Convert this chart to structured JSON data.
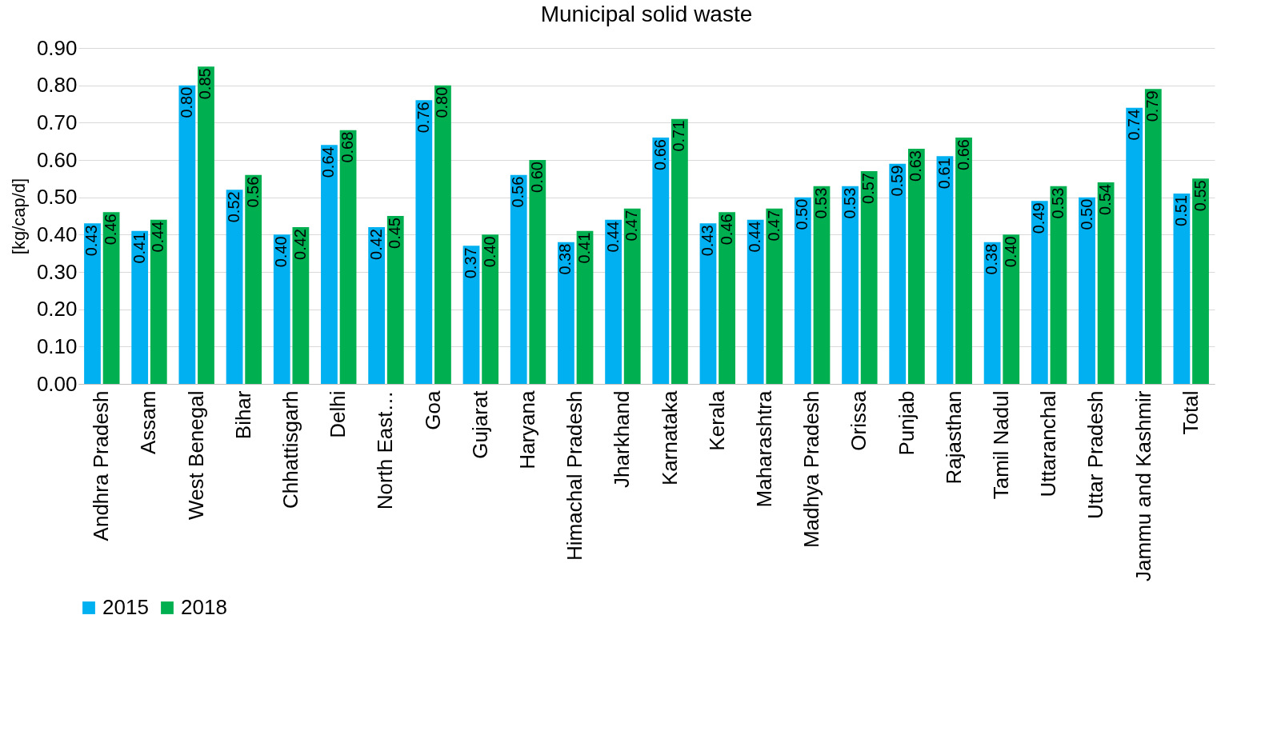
{
  "chart_data": {
    "type": "bar",
    "title": "Municipal solid waste",
    "ylabel": "[kg/cap/d]",
    "categories": [
      "Andhra Pradesh",
      "Assam",
      "West Benegal",
      "Bihar",
      "Chhattisgarh",
      "Delhi",
      "North East…",
      "Goa",
      "Gujarat",
      "Haryana",
      "Himachal Pradesh",
      "Jharkhand",
      "Karnataka",
      "Kerala",
      "Maharashtra",
      "Madhya Pradesh",
      "Orissa",
      "Punjab",
      "Rajasthan",
      "Tamil Nadul",
      "Uttaranchal",
      "Uttar Pradesh",
      "Jammu and Kashmir",
      "Total"
    ],
    "series": [
      {
        "name": "2015",
        "color": "#00b0f0",
        "values": [
          0.43,
          0.41,
          0.8,
          0.52,
          0.4,
          0.64,
          0.42,
          0.76,
          0.37,
          0.56,
          0.38,
          0.44,
          0.66,
          0.43,
          0.44,
          0.5,
          0.53,
          0.59,
          0.61,
          0.38,
          0.49,
          0.5,
          0.74,
          0.51
        ],
        "value_labels": [
          "0.43",
          "0.41",
          "0.80",
          "0.52",
          "0.40",
          "0.64",
          "0.42",
          "0.76",
          "0.37",
          "0.56",
          "0.38",
          "0.44",
          "0.66",
          "0.43",
          "0.44",
          "0.50",
          "0.53",
          "0.59",
          "0.61",
          "0.38",
          "0.49",
          "0.50",
          "0.74",
          "0.51"
        ]
      },
      {
        "name": "2018",
        "color": "#00b050",
        "values": [
          0.46,
          0.44,
          0.85,
          0.56,
          0.42,
          0.68,
          0.45,
          0.8,
          0.4,
          0.6,
          0.41,
          0.47,
          0.71,
          0.46,
          0.47,
          0.53,
          0.57,
          0.63,
          0.66,
          0.4,
          0.53,
          0.54,
          0.79,
          0.55
        ],
        "value_labels": [
          "0.46",
          "0.44",
          "0.85",
          "0.56",
          "0.42",
          "0.68",
          "0.45",
          "0.80",
          "0.40",
          "0.60",
          "0.41",
          "0.47",
          "0.71",
          "0.46",
          "0.47",
          "0.53",
          "0.57",
          "0.63",
          "0.66",
          "0.40",
          "0.53",
          "0.54",
          "0.79",
          "0.55"
        ]
      }
    ],
    "ylim": [
      0,
      0.9
    ],
    "yticks": [
      {
        "value": 0,
        "label": "0.00"
      },
      {
        "value": 0.1,
        "label": "0.10"
      },
      {
        "value": 0.2,
        "label": "0.20"
      },
      {
        "value": 0.3,
        "label": "0.30"
      },
      {
        "value": 0.4,
        "label": "0.40"
      },
      {
        "value": 0.5,
        "label": "0.50"
      },
      {
        "value": 0.6,
        "label": "0.60"
      },
      {
        "value": 0.7,
        "label": "0.70"
      },
      {
        "value": 0.8,
        "label": "0.80"
      },
      {
        "value": 0.9,
        "label": "0.90"
      }
    ],
    "grid": "y",
    "legend": "bottom"
  }
}
